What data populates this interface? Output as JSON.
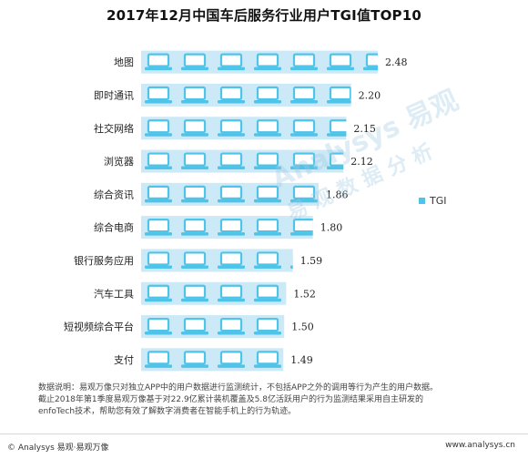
{
  "chart_data": {
    "type": "bar",
    "orientation": "horizontal",
    "title": "2017年12月中国车后服务行业用户TGI值TOP10",
    "categories": [
      "地图",
      "即时通讯",
      "社交网络",
      "浏览器",
      "综合资讯",
      "综合电商",
      "银行服务应用",
      "汽车工具",
      "短视频综合平台",
      "支付"
    ],
    "series": [
      {
        "name": "TGI",
        "values": [
          2.48,
          2.2,
          2.15,
          2.12,
          1.86,
          1.8,
          1.59,
          1.52,
          1.5,
          1.49
        ]
      }
    ],
    "value_labels": [
      "2.48",
      "2.20",
      "2.15",
      "2.12",
      "1.86",
      "1.80",
      "1.59",
      "1.52",
      "1.50",
      "1.49"
    ],
    "xlim": [
      0,
      2.48
    ],
    "grid": false,
    "legend_position": "right",
    "bar_color": "#cbe9f6",
    "icon_color": "#4fc3e8",
    "icon": "laptop-icon"
  },
  "watermark": {
    "line1": "Analysys 易观",
    "line2": "易观数据分析"
  },
  "note": "数据说明：易观万像只对独立APP中的用户数据进行监测统计，不包括APP之外的调用等行为产生的用户数据。截止2018年第1季度易观万像基于对22.9亿累计装机覆盖及5.8亿活跃用户的行为监测结果采用自主研发的enfoTech技术，帮助您有效了解数字消费者在智能手机上的行为轨迹。",
  "footer": {
    "left": "© Analysys 易观·易观万像",
    "right": "www.analysys.cn"
  }
}
